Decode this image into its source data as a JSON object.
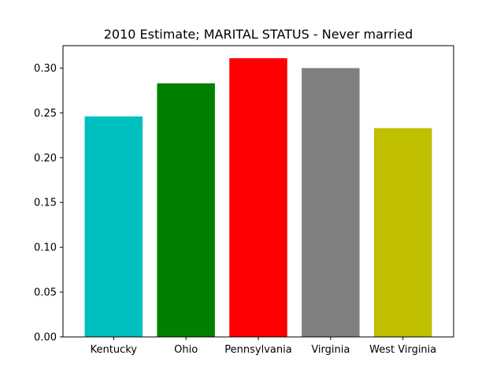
{
  "chart_data": {
    "type": "bar",
    "title": "2010 Estimate; MARITAL STATUS - Never married",
    "categories": [
      "Kentucky",
      "Ohio",
      "Pennsylvania",
      "Virginia",
      "West Virginia"
    ],
    "values": [
      0.246,
      0.283,
      0.311,
      0.3,
      0.233
    ],
    "colors": [
      "#00bfbf",
      "#008000",
      "#ff0000",
      "#808080",
      "#bfbf00"
    ],
    "xlabel": "",
    "ylabel": "",
    "ylim": [
      0,
      0.325
    ],
    "yticks": [
      "0.00",
      "0.05",
      "0.10",
      "0.15",
      "0.20",
      "0.25",
      "0.30"
    ],
    "grid": false,
    "legend": "none"
  }
}
